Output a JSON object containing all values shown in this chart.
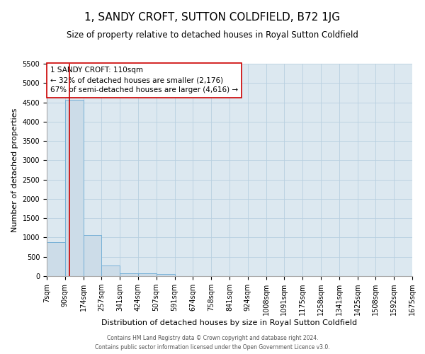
{
  "title": "1, SANDY CROFT, SUTTON COLDFIELD, B72 1JG",
  "subtitle": "Size of property relative to detached houses in Royal Sutton Coldfield",
  "xlabel": "Distribution of detached houses by size in Royal Sutton Coldfield",
  "ylabel": "Number of detached properties",
  "bin_edges": [
    7,
    90,
    174,
    257,
    341,
    424,
    507,
    591,
    674,
    758,
    841,
    924,
    1008,
    1091,
    1175,
    1258,
    1341,
    1425,
    1508,
    1592,
    1675
  ],
  "bar_heights": [
    880,
    4560,
    1060,
    280,
    80,
    80,
    50,
    0,
    0,
    0,
    0,
    0,
    0,
    0,
    0,
    0,
    0,
    0,
    0,
    0
  ],
  "bar_color": "#ccdce8",
  "bar_edge_color": "#6aaad4",
  "property_size": 110,
  "vline_color": "#cc0000",
  "annotation_text": "1 SANDY CROFT: 110sqm\n← 32% of detached houses are smaller (2,176)\n67% of semi-detached houses are larger (4,616) →",
  "annotation_box_color": "#ffffff",
  "annotation_box_edge_color": "#cc0000",
  "ylim": [
    0,
    5500
  ],
  "yticks": [
    0,
    500,
    1000,
    1500,
    2000,
    2500,
    3000,
    3500,
    4000,
    4500,
    5000,
    5500
  ],
  "tick_labels": [
    "7sqm",
    "90sqm",
    "174sqm",
    "257sqm",
    "341sqm",
    "424sqm",
    "507sqm",
    "591sqm",
    "674sqm",
    "758sqm",
    "841sqm",
    "924sqm",
    "1008sqm",
    "1091sqm",
    "1175sqm",
    "1258sqm",
    "1341sqm",
    "1425sqm",
    "1508sqm",
    "1592sqm",
    "1675sqm"
  ],
  "footer1": "Contains HM Land Registry data © Crown copyright and database right 2024.",
  "footer2": "Contains public sector information licensed under the Open Government Licence v3.0.",
  "background_color": "#ffffff",
  "plot_bg_color": "#dce8f0",
  "grid_color": "#b8cfe0",
  "title_fontsize": 11,
  "subtitle_fontsize": 8.5,
  "xlabel_fontsize": 8,
  "ylabel_fontsize": 8,
  "tick_fontsize": 7,
  "annotation_fontsize": 7.5,
  "footer_fontsize": 5.5
}
